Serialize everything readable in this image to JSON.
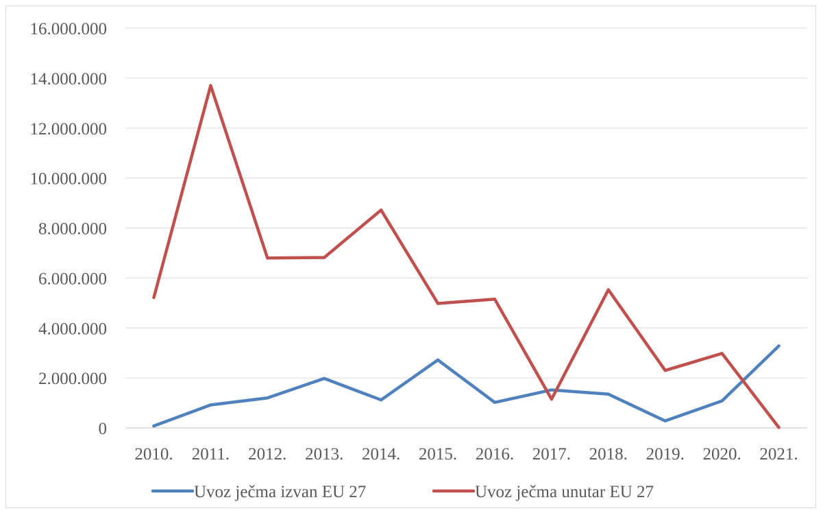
{
  "chart_data": {
    "type": "line",
    "title": "",
    "xlabel": "",
    "ylabel": "",
    "categories": [
      "2010.",
      "2011.",
      "2012.",
      "2013.",
      "2014.",
      "2015.",
      "2016.",
      "2017.",
      "2018.",
      "2019.",
      "2020.",
      "2021."
    ],
    "ylim": [
      0,
      16000000
    ],
    "yticks": [
      "0",
      "2.000.000",
      "4.000.000",
      "6.000.000",
      "8.000.000",
      "10.000.000",
      "12.000.000",
      "14.000.000",
      "16.000.000"
    ],
    "grid": true,
    "legend_position": "bottom",
    "series": [
      {
        "name": "Uvoz ječma izvan EU 27",
        "color": "#4f81bd",
        "values": [
          80000,
          920000,
          1200000,
          1980000,
          1120000,
          2720000,
          1020000,
          1520000,
          1350000,
          280000,
          1080000,
          3280000
        ]
      },
      {
        "name": "Uvoz ječma unutar EU 27",
        "color": "#c0504d",
        "values": [
          5220000,
          13700000,
          6800000,
          6820000,
          8720000,
          4980000,
          5150000,
          1150000,
          5530000,
          2300000,
          2980000,
          20000
        ]
      }
    ]
  }
}
